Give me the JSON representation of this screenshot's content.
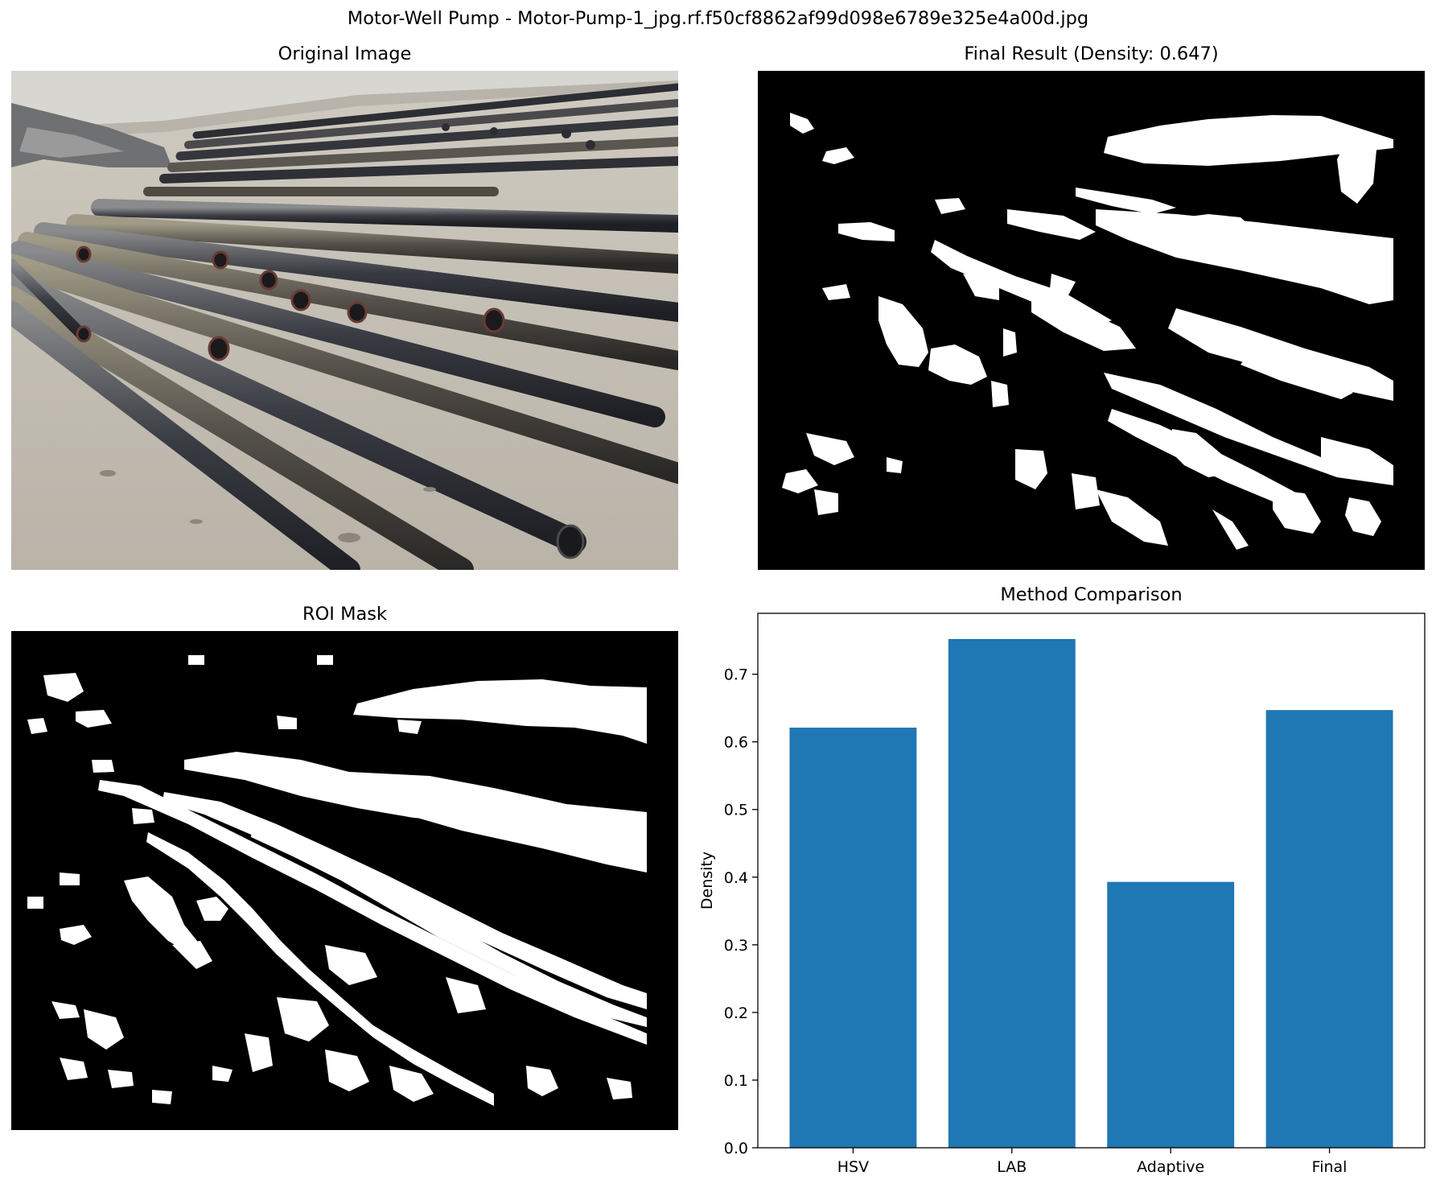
{
  "figure": {
    "suptitle": "Motor-Well Pump - Motor-Pump-1_jpg.rf.f50cf8862af99d098e6789e325e4a00d.jpg"
  },
  "panels": {
    "original": {
      "title": "Original Image"
    },
    "final": {
      "title": "Final Result (Density: 0.647)"
    },
    "roi": {
      "title": "ROI Mask"
    },
    "comparison": {
      "title": "Method Comparison"
    }
  },
  "chart_data": {
    "type": "bar",
    "title": "Method Comparison",
    "categories": [
      "HSV",
      "LAB",
      "Adaptive",
      "Final"
    ],
    "values": [
      0.621,
      0.752,
      0.393,
      0.647
    ],
    "xlabel": "",
    "ylabel": "Density",
    "ylim": [
      0,
      0.79
    ],
    "yticks": [
      "0.0",
      "0.1",
      "0.2",
      "0.3",
      "0.4",
      "0.5",
      "0.6",
      "0.7"
    ],
    "bar_color": "#1f77b4",
    "grid": false
  }
}
